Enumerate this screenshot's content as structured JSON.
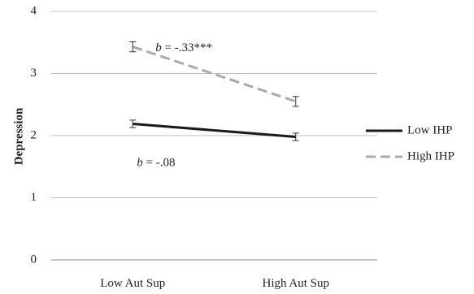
{
  "chart_data": {
    "type": "line",
    "title": "",
    "xlabel": "",
    "ylabel": "Depression",
    "categories": [
      "Low Aut Sup",
      "High Aut Sup"
    ],
    "ylim": [
      0,
      4
    ],
    "yticks": [
      "0",
      "1",
      "2",
      "3",
      "4"
    ],
    "grid": true,
    "legend_position": "right",
    "series": [
      {
        "name": "Low IHP",
        "values": [
          2.19,
          1.98
        ],
        "errors": [
          0.06,
          0.06
        ],
        "color": "#1a1a1a",
        "style": "solid",
        "annotation": "b = -.08",
        "annotation_x_index": 0,
        "annotation_y": 1.55
      },
      {
        "name": "High IHP",
        "values": [
          3.43,
          2.55
        ],
        "errors": [
          0.08,
          0.08
        ],
        "color": "#aaaaaa",
        "style": "dashed",
        "annotation": "b = -.33***",
        "annotation_x_index": 0,
        "annotation_y": 3.4
      }
    ]
  }
}
